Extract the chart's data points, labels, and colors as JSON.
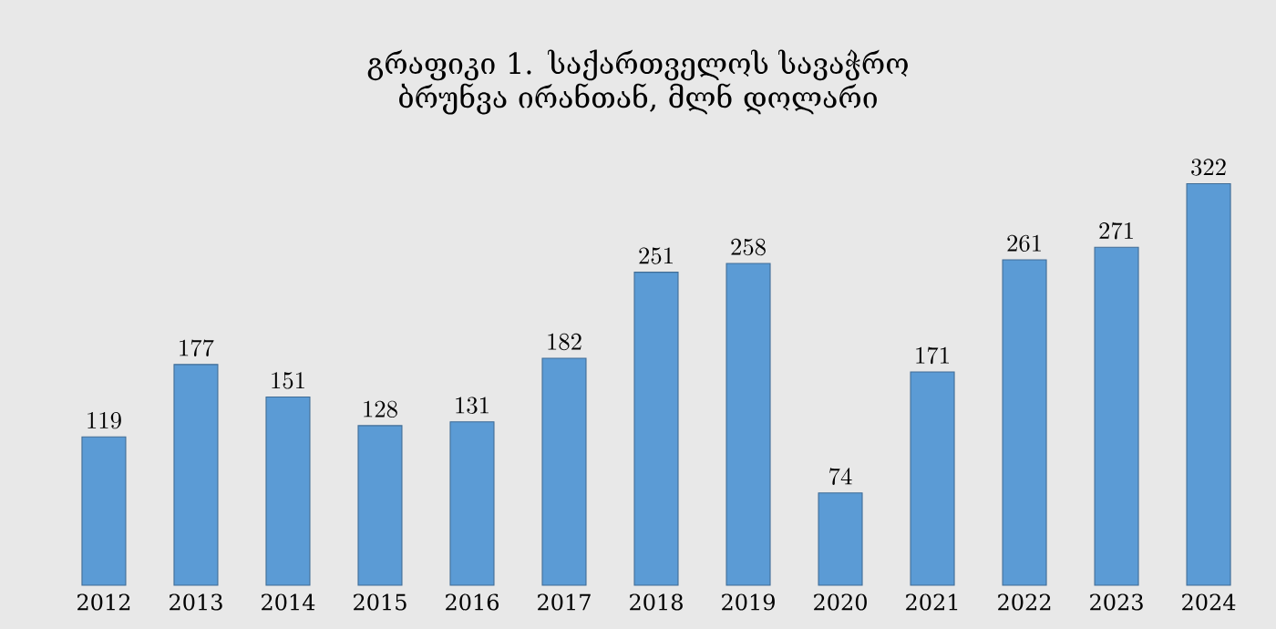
{
  "chart_data": {
    "type": "bar",
    "title": "გრაფიკი 1. საქართველოს სავაჭრო ბრუნვა ირანთან, მლნ დოლარი",
    "categories": [
      "2012",
      "2013",
      "2014",
      "2015",
      "2016",
      "2017",
      "2018",
      "2019",
      "2020",
      "2021",
      "2022",
      "2023",
      "2024"
    ],
    "values": [
      119,
      177,
      151,
      128,
      131,
      182,
      251,
      258,
      74,
      171,
      261,
      271,
      322
    ],
    "color": "#5b9bd5",
    "data_labels": true
  }
}
